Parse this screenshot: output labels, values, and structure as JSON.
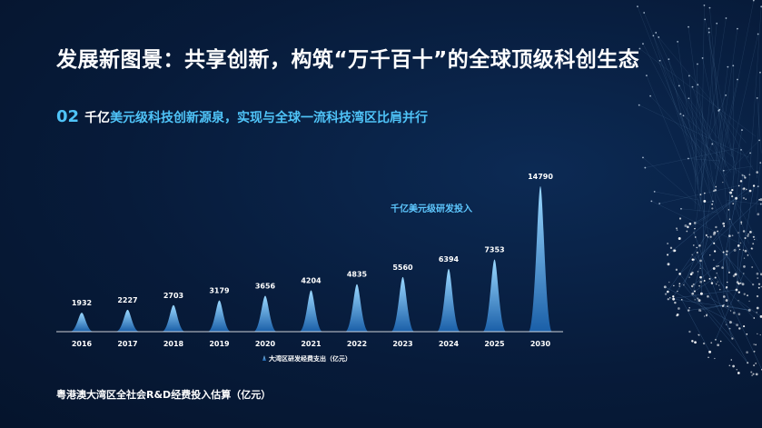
{
  "page": {
    "title": "发展新图景：共享创新，构筑“万千百十”的全球顶级科创生态",
    "subtitle_number": "02",
    "subtitle_highlight": "千亿",
    "subtitle_rest": "美元级科技创新源泉，实现与全球一流科技湾区比肩并行",
    "footnote": "粤港澳大湾区全社会R&D经费投入估算（亿元）"
  },
  "colors": {
    "accent": "#4fc3f7",
    "bar_top": "#9ad8ff",
    "bar_bottom": "#1a5fa8",
    "background": "#071b3a"
  },
  "chart_data": {
    "type": "area",
    "categories": [
      "2016",
      "2017",
      "2018",
      "2019",
      "2020",
      "2021",
      "2022",
      "2023",
      "2024",
      "2025",
      "2030"
    ],
    "series": [
      {
        "name": "大湾区研发经费支出（亿元）",
        "values": [
          1932,
          2227,
          2703,
          3179,
          3656,
          4204,
          4835,
          5560,
          6394,
          7353,
          14790
        ]
      }
    ],
    "value_labels": [
      "1932",
      "2227",
      "2703",
      "3179",
      "3656",
      "4204",
      "4835",
      "5560",
      "6394",
      "7353",
      "14790"
    ],
    "annotation": "千亿美元级研发投入",
    "legend": "大湾区研发经费支出（亿元）",
    "legend_position": "bottom",
    "ylim": [
      0,
      14790
    ],
    "grid": false
  }
}
